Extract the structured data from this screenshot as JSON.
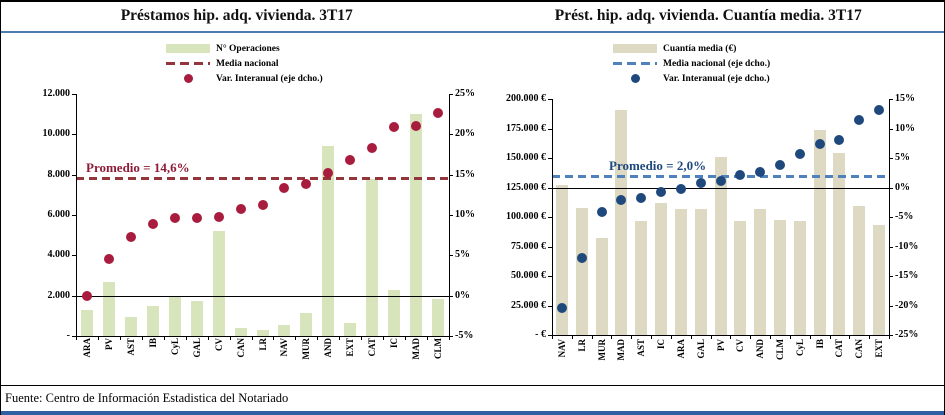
{
  "page": {
    "titles": {
      "left": "Préstamos hip. adq. vivienda. 3T17",
      "right": "Prést. hip. adq. vivienda. Cuantía media. 3T17"
    },
    "footer": "Fuente: Centro de Información Estadistica del Notariado"
  },
  "colors": {
    "left_bar": "#D7E4BC",
    "left_dot": "#A81C3E",
    "left_dash": "#93353B",
    "left_annotation": "#8E1C38",
    "right_bar": "#DDD9C3",
    "right_dot": "#1F497D",
    "right_dash": "#4F81BD",
    "right_annotation": "#1F497D",
    "title_rule": "#4E7CB0",
    "bottom_bar": "#2E5FA3"
  },
  "chart_data": [
    {
      "type": "bar",
      "title": "Préstamos hip. adq. vivienda. 3T17",
      "legend": [
        {
          "label": "N° Operaciones",
          "marker": "bar"
        },
        {
          "label": "Media nacional",
          "marker": "dash"
        },
        {
          "label": "Var. Interanual (eje dcho.)",
          "marker": "dot"
        }
      ],
      "categories": [
        "ARA",
        "PV",
        "AST",
        "IB",
        "CyL",
        "GAL",
        "CV",
        "CAN",
        "LR",
        "NAV",
        "MUR",
        "AND",
        "EXT",
        "CAT",
        "IC",
        "MAD",
        "CLM"
      ],
      "series": [
        {
          "name": "N° Operaciones",
          "type": "bar",
          "axis": "left",
          "values": [
            1300,
            2700,
            950,
            1500,
            2000,
            1750,
            5200,
            400,
            300,
            550,
            1150,
            9400,
            650,
            7800,
            2300,
            11000,
            1850
          ]
        },
        {
          "name": "Var. Interanual (eje dcho.)",
          "type": "scatter",
          "axis": "right",
          "values": [
            0.0,
            4.6,
            7.3,
            8.9,
            9.6,
            9.6,
            9.7,
            10.8,
            11.2,
            13.3,
            13.8,
            15.2,
            16.8,
            18.3,
            20.9,
            21.0,
            22.6
          ]
        },
        {
          "name": "Media nacional",
          "type": "hline",
          "axis": "right",
          "value": 14.6
        }
      ],
      "annotation": "Promedio = 14,6%",
      "axes": {
        "left": {
          "min": 0,
          "max": 12000,
          "ticks": [
            "12.000",
            "10.000",
            "8.000",
            "6.000",
            "4.000",
            "2.000",
            "-"
          ]
        },
        "right": {
          "min": -5,
          "max": 25,
          "ticks": [
            "25%",
            "20%",
            "15%",
            "10%",
            "5%",
            "0%",
            "-5%"
          ]
        },
        "zero_right": 0
      },
      "grid": false,
      "legend_position": "top"
    },
    {
      "type": "bar",
      "title": "Prést. hip. adq. vivienda. Cuantía media. 3T17",
      "legend": [
        {
          "label": "Cuantía media (€)",
          "marker": "bar"
        },
        {
          "label": "Media nacional (eje dcho.)",
          "marker": "dash"
        },
        {
          "label": "Var. Interanual (eje dcho.)",
          "marker": "dot"
        }
      ],
      "categories": [
        "NAV",
        "LR",
        "MUR",
        "MAD",
        "AST",
        "IC",
        "ARA",
        "GAL",
        "PV",
        "CV",
        "AND",
        "CLM",
        "CyL",
        "IB",
        "CAT",
        "CAN",
        "EXT"
      ],
      "series": [
        {
          "name": "Cuantía media (€)",
          "type": "bar",
          "axis": "left",
          "values": [
            127500,
            108000,
            82000,
            191000,
            96500,
            111500,
            107000,
            107000,
            151000,
            96500,
            107000,
            97500,
            96500,
            174000,
            154000,
            109000,
            93000
          ]
        },
        {
          "name": "Var. Interanual (eje dcho.)",
          "type": "scatter",
          "axis": "right",
          "values": [
            -20.4,
            -12.0,
            -4.1,
            -2.2,
            -1.7,
            -0.7,
            -0.3,
            0.8,
            1.1,
            2.1,
            2.7,
            3.8,
            5.7,
            7.3,
            8.0,
            11.4,
            13.2
          ]
        },
        {
          "name": "Media nacional (eje dcho.)",
          "type": "hline",
          "axis": "right",
          "value": 2.0
        }
      ],
      "annotation": "Promedio = 2,0%",
      "axes": {
        "left": {
          "min": 0,
          "max": 200000,
          "ticks": [
            "200.000 €",
            "175.000 €",
            "150.000 €",
            "125.000 €",
            "100.000 €",
            "75.000 €",
            "50.000 €",
            "25.000 €",
            "- €"
          ]
        },
        "right": {
          "min": -25,
          "max": 15,
          "ticks": [
            "15%",
            "10%",
            "5%",
            "0%",
            "-5%",
            "-10%",
            "-15%",
            "-20%",
            "-25%"
          ]
        },
        "zero_right": 0
      },
      "grid": false,
      "legend_position": "top"
    }
  ]
}
